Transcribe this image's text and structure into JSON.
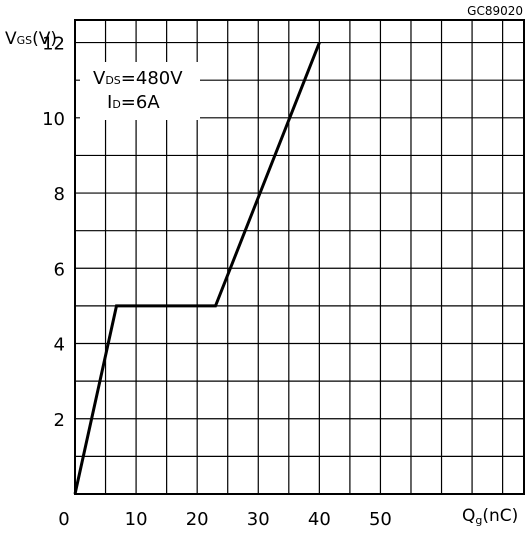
{
  "chart_data": {
    "type": "line",
    "title": "",
    "figure_id": "GC89020",
    "xlabel": "Qg(nC)",
    "ylabel": "VGS(V)",
    "xlim": [
      0,
      73.5
    ],
    "ylim": [
      0,
      12.6
    ],
    "xticks": [
      0,
      10,
      20,
      30,
      40,
      50
    ],
    "yticks": [
      2,
      4,
      6,
      8,
      10,
      12
    ],
    "grid": true,
    "annotation": {
      "line1_main": "V",
      "line1_sub": "DS",
      "line1_rest": "=480V",
      "line2_main": "I",
      "line2_sub": "D",
      "line2_rest": "=6A"
    },
    "series": [
      {
        "name": "",
        "x": [
          0,
          6.8,
          23,
          40
        ],
        "y": [
          0,
          5.0,
          5.0,
          12.0
        ]
      }
    ]
  },
  "colors": {
    "line": "#000000",
    "grid": "#000000",
    "background": "#ffffff"
  }
}
